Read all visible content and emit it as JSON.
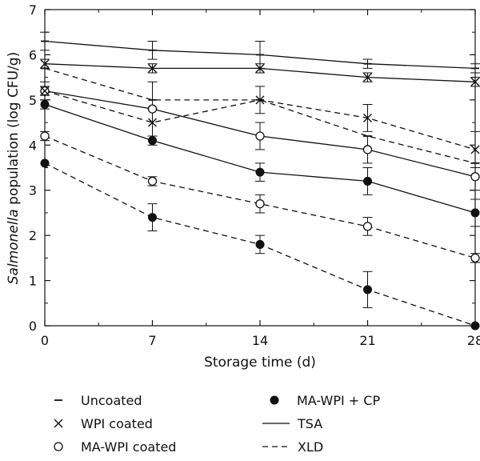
{
  "chart_data": {
    "type": "line",
    "title": "",
    "xlabel": "Storage time (d)",
    "ylabel_italic": "Salmonella",
    "ylabel_rest": " population (log CFU/g)",
    "x": [
      0,
      7,
      14,
      21,
      28
    ],
    "x_ticks": [
      "0",
      "7",
      "14",
      "21",
      "28"
    ],
    "y_ticks": [
      "0",
      "1",
      "2",
      "3",
      "4",
      "5",
      "6",
      "7"
    ],
    "xlim": [
      0,
      28
    ],
    "ylim": [
      0,
      7
    ],
    "grid": false,
    "legend_position": "bottom",
    "legend": [
      {
        "label": "Uncoated",
        "marker": "dash"
      },
      {
        "label": "WPI coated",
        "marker": "cross"
      },
      {
        "label": "MA-WPI coated",
        "marker": "open-circle"
      },
      {
        "label": "MA-WPI + CP",
        "marker": "filled-circle"
      },
      {
        "label": "TSA",
        "line": "solid"
      },
      {
        "label": "XLD",
        "line": "dashed"
      }
    ],
    "series": [
      {
        "treatment": "Uncoated",
        "medium": "TSA",
        "marker": "dash",
        "line": "solid",
        "values": [
          6.3,
          6.1,
          6.0,
          5.8,
          5.7
        ],
        "err": [
          0.2,
          0.2,
          0.3,
          0.1,
          0.1
        ]
      },
      {
        "treatment": "WPI coated",
        "medium": "TSA",
        "marker": "cross",
        "line": "solid",
        "values": [
          5.8,
          5.7,
          5.7,
          5.5,
          5.4
        ],
        "err": [
          0.1,
          0.1,
          0.1,
          0.1,
          0.1
        ]
      },
      {
        "treatment": "MA-WPI coated",
        "medium": "TSA",
        "marker": "open-circle",
        "line": "solid",
        "values": [
          5.2,
          4.8,
          4.2,
          3.9,
          3.3
        ],
        "err": [
          0.2,
          0.6,
          0.3,
          0.3,
          0.3
        ]
      },
      {
        "treatment": "MA-WPI + CP",
        "medium": "TSA",
        "marker": "filled-circle",
        "line": "solid",
        "values": [
          4.9,
          4.1,
          3.4,
          3.2,
          2.5
        ],
        "err": [
          0.1,
          0.1,
          0.2,
          0.3,
          0.3
        ]
      },
      {
        "treatment": "Uncoated",
        "medium": "XLD",
        "marker": "dash",
        "line": "dashed",
        "values": [
          5.7,
          5.0,
          5.0,
          4.2,
          3.6
        ],
        "err": [
          0.0,
          0.0,
          0.0,
          0.0,
          0.0
        ]
      },
      {
        "treatment": "WPI coated",
        "medium": "XLD",
        "marker": "cross",
        "line": "dashed",
        "values": [
          5.2,
          4.5,
          5.0,
          4.6,
          3.9
        ],
        "err": [
          0.1,
          0.3,
          0.3,
          0.3,
          0.4
        ]
      },
      {
        "treatment": "MA-WPI coated",
        "medium": "XLD",
        "marker": "open-circle",
        "line": "dashed",
        "values": [
          4.2,
          3.2,
          2.7,
          2.2,
          1.5
        ],
        "err": [
          0.1,
          0.1,
          0.2,
          0.2,
          0.1
        ]
      },
      {
        "treatment": "MA-WPI + CP",
        "medium": "XLD",
        "marker": "filled-circle",
        "line": "dashed",
        "values": [
          3.6,
          2.4,
          1.8,
          0.8,
          0.0
        ],
        "err": [
          0.0,
          0.3,
          0.2,
          0.4,
          0.0
        ]
      }
    ]
  }
}
